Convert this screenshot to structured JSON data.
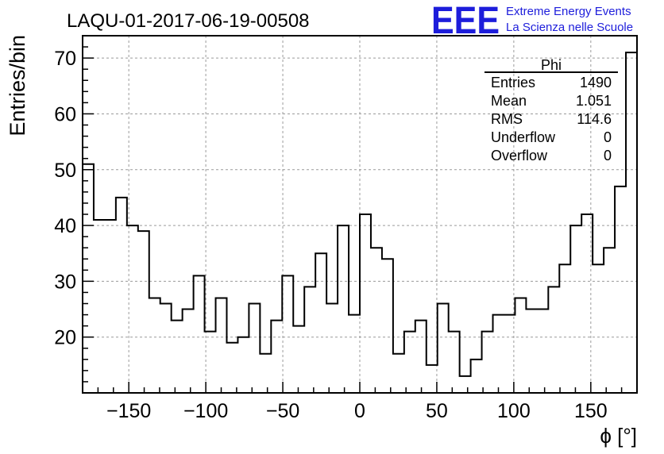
{
  "chart_data": {
    "type": "histogram",
    "title": "LAQU-01-2017-06-19-00508",
    "xlabel": "ϕ [°]",
    "ylabel": "Entries/bin",
    "xlim": [
      -180,
      180
    ],
    "ylim": [
      10,
      74
    ],
    "bin_width": 7.2,
    "xticks": [
      -150,
      -100,
      -50,
      0,
      50,
      100,
      150
    ],
    "xtick_labels": [
      "−150",
      "−100",
      "−50",
      "0",
      "50",
      "100",
      "150"
    ],
    "yticks": [
      20,
      30,
      40,
      50,
      60,
      70
    ],
    "grid": true,
    "values": [
      51,
      41,
      41,
      45,
      40,
      39,
      27,
      26,
      23,
      25,
      31,
      21,
      27,
      19,
      20,
      26,
      17,
      23,
      31,
      22,
      29,
      35,
      26,
      40,
      24,
      42,
      36,
      34,
      17,
      21,
      23,
      15,
      26,
      21,
      13,
      16,
      21,
      24,
      24,
      27,
      25,
      25,
      29,
      33,
      40,
      42,
      33,
      36,
      47,
      71
    ]
  },
  "stats": {
    "title": "Phi",
    "rows": [
      {
        "label": "Entries",
        "value": "1490"
      },
      {
        "label": "Mean",
        "value": "1.051"
      },
      {
        "label": "RMS",
        "value": "114.6"
      },
      {
        "label": "Underflow",
        "value": "0"
      },
      {
        "label": "Overflow",
        "value": "0"
      }
    ]
  },
  "logo": {
    "mark": "EEE",
    "line1": "Extreme Energy Events",
    "line2": "La Scienza nelle Scuole"
  }
}
